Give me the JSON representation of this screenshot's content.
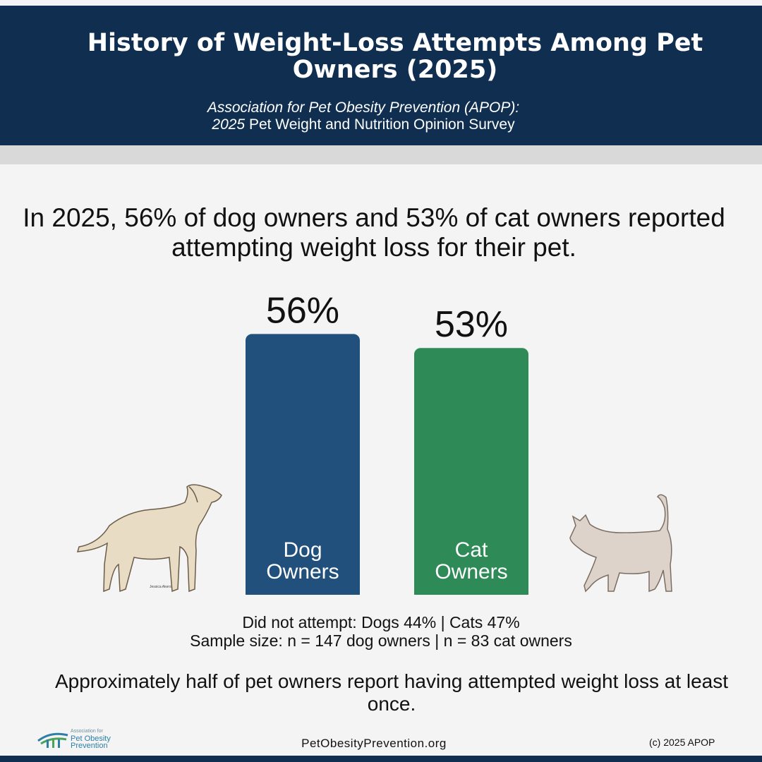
{
  "header": {
    "title": "History of Weight-Loss Attempts Among Pet Owners (2025)",
    "subtitle_line1": "Association for Pet Obesity Prevention (APOP):",
    "subtitle_line2_year": "2025",
    "subtitle_line2_rest": " Pet Weight and Nutrition Opinion Survey"
  },
  "headline": "In 2025, 56% of dog owners and 53% of cat owners reported attempting weight loss for their pet.",
  "chart_data": {
    "type": "bar",
    "categories": [
      "Dog Owners",
      "Cat Owners"
    ],
    "category_lines": [
      [
        "Dog",
        "Owners"
      ],
      [
        "Cat",
        "Owners"
      ]
    ],
    "values": [
      56,
      53
    ],
    "value_labels": [
      "56%",
      "53%"
    ],
    "unit": "%",
    "colors": [
      "#21507c",
      "#2e8b57"
    ],
    "grid": false,
    "legend": "none"
  },
  "notes": {
    "did_not_attempt": "Did not attempt: Dogs 44% | Cats 47%",
    "sample_size": "Sample size: n = 147 dog owners | n = 83 cat owners"
  },
  "takeaway": "Approximately half of pet owners report having attempted weight loss at least once.",
  "footer": {
    "website": "PetObesityPrevention.org",
    "copyright": "(c) 2025 APOP",
    "logo_small": "Association for",
    "logo_line1": "Pet Obesity",
    "logo_line2": "Prevention"
  },
  "illustrations": {
    "dog": "dog-illustration",
    "cat": "cat-illustration",
    "dog_signature": "Jessica Akers"
  },
  "colors": {
    "header_bg": "#102f50",
    "background": "#f4f4f4",
    "dog_bar": "#21507c",
    "cat_bar": "#2e8b57"
  }
}
